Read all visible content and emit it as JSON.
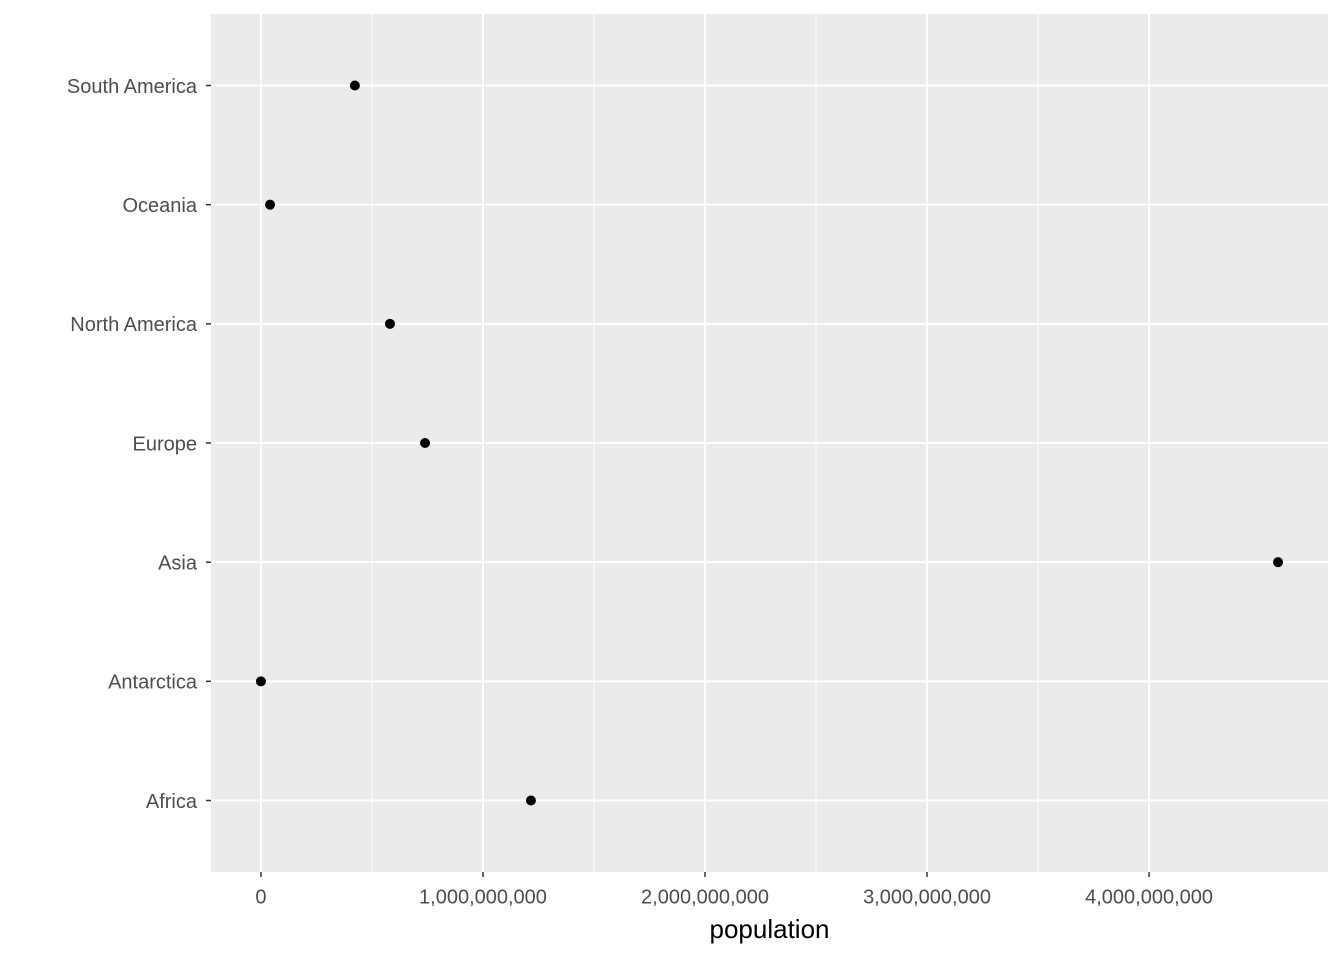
{
  "chart_data": {
    "type": "dot",
    "x_label": "population",
    "categories": [
      "Africa",
      "Antarctica",
      "Asia",
      "Europe",
      "North America",
      "Oceania",
      "South America"
    ],
    "values": [
      1216000000,
      0,
      4581000000,
      739000000,
      581000000,
      41000000,
      423000000
    ],
    "color": "#000000",
    "xlim": [
      -225000000,
      4806000000
    ],
    "xticks": [
      0,
      {
        "value": 1000000000,
        "label": "1,000,000,000"
      },
      {
        "value": 2000000000,
        "label": "2,000,000,000"
      },
      {
        "value": 3000000000,
        "label": "3,000,000,000"
      },
      {
        "value": 4000000000,
        "label": "4,000,000,000"
      }
    ],
    "grid": true,
    "minor_grid": true
  }
}
